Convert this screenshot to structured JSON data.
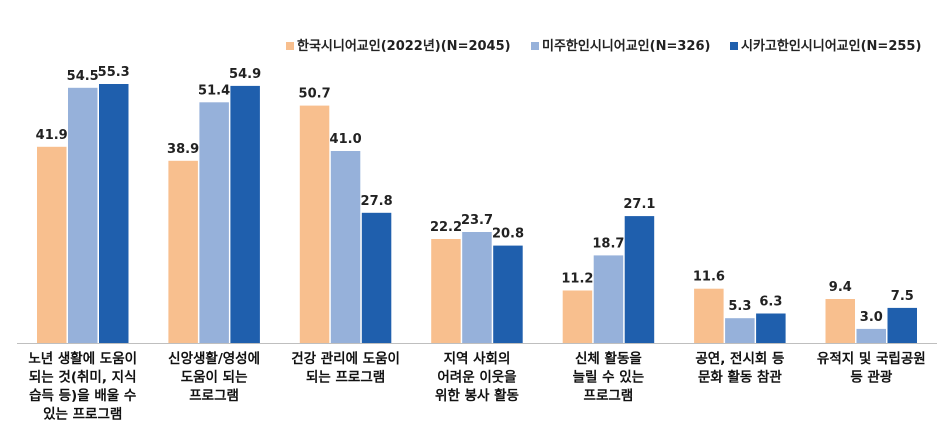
{
  "chart_data": {
    "type": "bar",
    "title": "",
    "xlabel": "",
    "ylabel": "",
    "ylim": [
      0,
      60
    ],
    "legend_position": "top-right",
    "grid": false,
    "categories": [
      [
        "노년 생활에 도움이",
        "되는 것(취미, 지식",
        "습득 등)을 배울 수",
        "있는 프로그램"
      ],
      [
        "신앙생활/영성에",
        "도움이 되는",
        "프로그램"
      ],
      [
        "건강 관리에 도움이",
        "되는 프로그램"
      ],
      [
        "지역 사회의",
        "어려운 이웃을",
        "위한 봉사 활동"
      ],
      [
        "신체 활동을",
        "늘릴 수 있는",
        "프로그램"
      ],
      [
        "공연, 전시회 등",
        "문화 활동 참관"
      ],
      [
        "유적지 및 국립공원",
        "등 관광"
      ]
    ],
    "series": [
      {
        "name": "한국시니어교인(2022년)(N=2045)",
        "color": "#F8BF8E",
        "values": [
          41.9,
          38.9,
          50.7,
          22.2,
          11.2,
          11.6,
          9.4
        ],
        "labels": [
          "41.9",
          "38.9",
          "50.7",
          "22.2",
          "11.2",
          "11.6",
          "9.4"
        ]
      },
      {
        "name": "미주한인시니어교인(N=326)",
        "color": "#96B1DA",
        "values": [
          54.5,
          51.4,
          41.0,
          23.7,
          18.7,
          5.3,
          3.0
        ],
        "labels": [
          "54.5",
          "51.4",
          "41.0",
          "23.7",
          "18.7",
          "5.3",
          "3.0"
        ]
      },
      {
        "name": "시카고한인시니어교인(N=255)",
        "color": "#1F5FAD",
        "values": [
          55.3,
          54.9,
          27.8,
          20.8,
          27.1,
          6.3,
          7.5
        ],
        "labels": [
          "55.3",
          "54.9",
          "27.8",
          "20.8",
          "27.1",
          "6.3",
          "7.5"
        ]
      }
    ]
  }
}
